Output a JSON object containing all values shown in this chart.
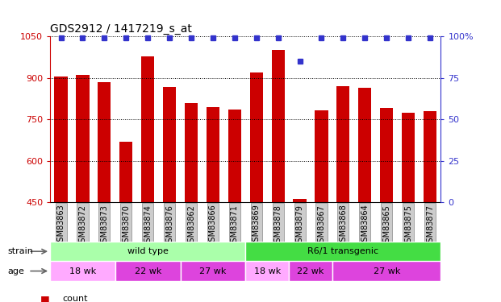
{
  "title": "GDS2912 / 1417219_s_at",
  "samples": [
    "GSM83863",
    "GSM83872",
    "GSM83873",
    "GSM83870",
    "GSM83874",
    "GSM83876",
    "GSM83862",
    "GSM83866",
    "GSM83871",
    "GSM83869",
    "GSM83878",
    "GSM83879",
    "GSM83867",
    "GSM83868",
    "GSM83864",
    "GSM83865",
    "GSM83875",
    "GSM83877"
  ],
  "counts": [
    905,
    910,
    885,
    668,
    978,
    868,
    808,
    795,
    785,
    920,
    1000,
    462,
    782,
    870,
    865,
    790,
    775,
    778
  ],
  "percentiles": [
    99,
    99,
    99,
    99,
    99,
    99,
    99,
    99,
    99,
    99,
    99,
    85,
    99,
    99,
    99,
    99,
    99,
    99
  ],
  "bar_color": "#cc0000",
  "dot_color": "#3333cc",
  "ylim_left": [
    450,
    1050
  ],
  "ylim_right": [
    0,
    100
  ],
  "yticks_left": [
    450,
    600,
    750,
    900,
    1050
  ],
  "yticks_right": [
    0,
    25,
    50,
    75,
    100
  ],
  "strain_groups": [
    {
      "label": "wild type",
      "start": 0,
      "end": 9,
      "color": "#aaffaa"
    },
    {
      "label": "R6/1 transgenic",
      "start": 9,
      "end": 18,
      "color": "#44dd44"
    }
  ],
  "age_groups": [
    {
      "label": "18 wk",
      "start": 0,
      "end": 3,
      "color": "#ffaaff"
    },
    {
      "label": "22 wk",
      "start": 3,
      "end": 6,
      "color": "#dd44dd"
    },
    {
      "label": "27 wk",
      "start": 6,
      "end": 9,
      "color": "#dd44dd"
    },
    {
      "label": "18 wk",
      "start": 9,
      "end": 11,
      "color": "#ffaaff"
    },
    {
      "label": "22 wk",
      "start": 11,
      "end": 13,
      "color": "#dd44dd"
    },
    {
      "label": "27 wk",
      "start": 13,
      "end": 18,
      "color": "#dd44dd"
    }
  ],
  "background_color": "#ffffff",
  "tick_bg_color": "#cccccc",
  "left_axis_color": "#cc0000",
  "right_axis_color": "#3333cc",
  "legend_count_color": "#cc0000",
  "legend_perc_color": "#3333cc"
}
